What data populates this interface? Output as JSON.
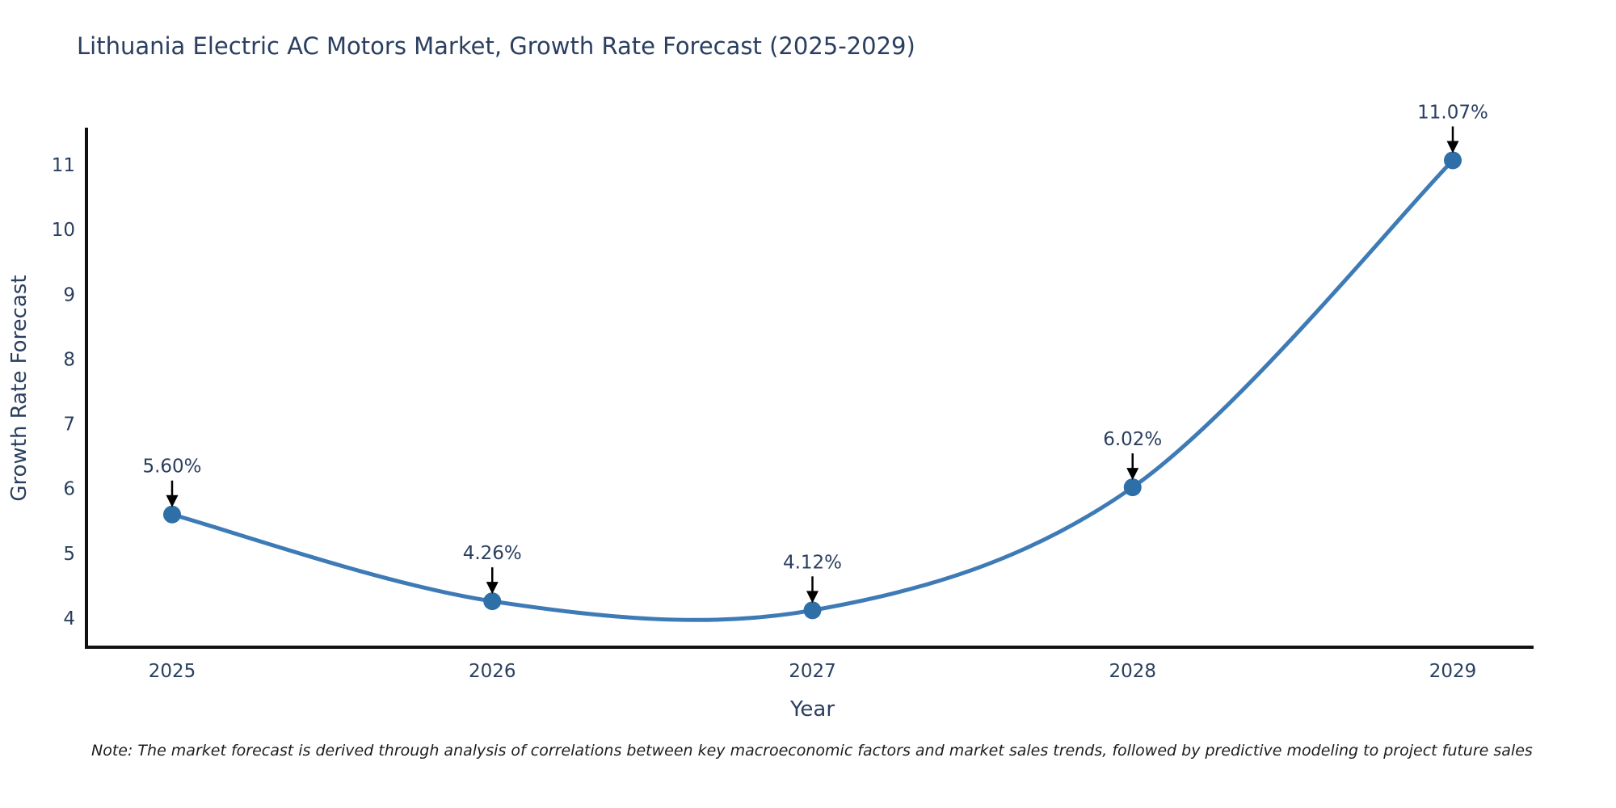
{
  "title": "Lithuania Electric AC Motors Market, Growth Rate Forecast (2025-2029)",
  "note": "Note: The market forecast is derived through analysis of correlations between key macroeconomic factors and market sales trends, followed by predictive modeling to project future sales",
  "chart_data": {
    "type": "line",
    "title": "Lithuania Electric AC Motors Market, Growth Rate Forecast (2025-2029)",
    "x": [
      2025,
      2026,
      2027,
      2028,
      2029
    ],
    "series": [
      {
        "name": "Growth Rate Forecast",
        "values": [
          5.6,
          4.26,
          4.12,
          6.02,
          11.07
        ]
      }
    ],
    "point_labels": [
      "5.60%",
      "4.26%",
      "4.12%",
      "6.02%",
      "11.07%"
    ],
    "xlabel": "Year",
    "ylabel": "Growth Rate Forecast",
    "xticks": [
      "2025",
      "2026",
      "2027",
      "2028",
      "2029"
    ],
    "yticks": [
      4,
      5,
      6,
      7,
      8,
      9,
      10,
      11
    ],
    "ylim": [
      3.55,
      11.55
    ],
    "line_shape": "spline",
    "grid": false,
    "legend": "none",
    "colors": {
      "line": "#3e7bb6",
      "marker": "#2f6fa8",
      "axis": "#111111",
      "text": "#2a3f5f",
      "annotation_text": "#2a3f5f",
      "annotation_arrow": "#000000",
      "background": "#ffffff"
    }
  }
}
